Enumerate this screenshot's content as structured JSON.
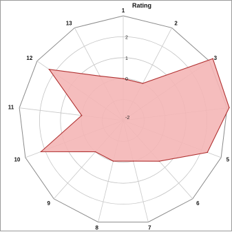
{
  "chart_data": {
    "type": "radar",
    "title": "Rating",
    "categories": [
      "1",
      "2",
      "3",
      "4",
      "5",
      "6",
      "7",
      "8",
      "9",
      "10",
      "11",
      "12",
      "13"
    ],
    "values": [
      0,
      0,
      3.2,
      3.1,
      2.3,
      0.6,
      0,
      0,
      0,
      2.2,
      0,
      2.3,
      0.4
    ],
    "rlim": [
      -2,
      3
    ],
    "tick_values": [
      -2,
      0,
      1,
      2
    ],
    "tick_labels": [
      "-2",
      "0",
      "1",
      "2"
    ],
    "grid": true
  },
  "colors": {
    "fill": "#f4b6b6",
    "stroke": "#b03030",
    "grid": "#c2c2c2",
    "axis": "#c8c8c8"
  }
}
